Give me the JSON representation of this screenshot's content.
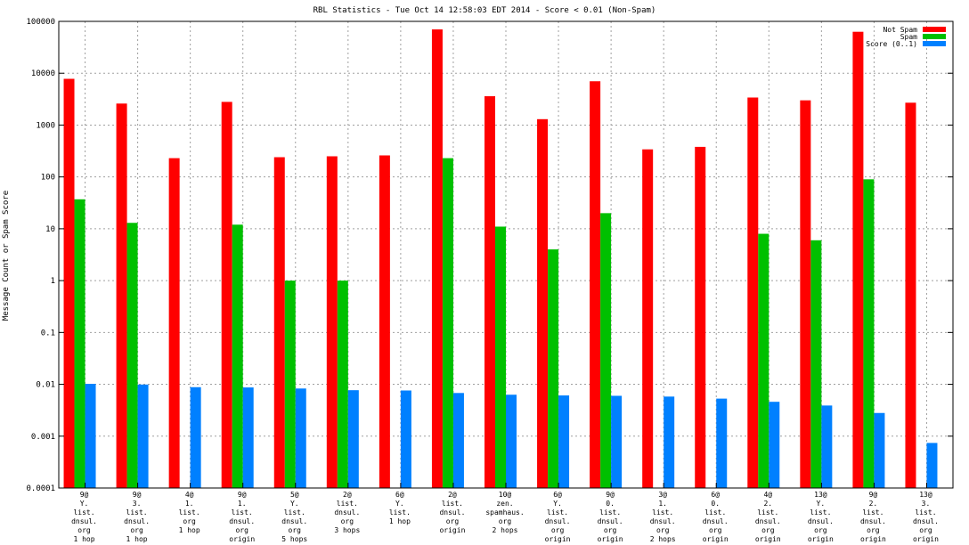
{
  "chart_data": {
    "type": "bar",
    "title": "RBL Statistics - Tue Oct 14 12:58:03 EDT 2014 - Score < 0.01 (Non-Spam)",
    "xlabel": "",
    "ylabel": "Message Count or Spam Score",
    "yscale": "log",
    "ylim": [
      0.0001,
      100000
    ],
    "yticks": [
      "0.0001",
      "0.001",
      "0.01",
      "0.1",
      "1",
      "10",
      "100",
      "1000",
      "10000",
      "100000"
    ],
    "grid": true,
    "legend_position": "top-right",
    "categories": [
      [
        "9@",
        "Y.",
        "list.",
        "dnsul.",
        "org",
        "1 hop"
      ],
      [
        "9@",
        "3.",
        "list.",
        "dnsul.",
        "org",
        "1 hop"
      ],
      [
        "4@",
        "1.",
        "list.",
        "org",
        "1 hop"
      ],
      [
        "9@",
        "1.",
        "list.",
        "dnsul.",
        "org",
        "origin"
      ],
      [
        "5@",
        "Y.",
        "list.",
        "dnsul.",
        "org",
        "5 hops"
      ],
      [
        "2@",
        "list.",
        "dnsul.",
        "org",
        "3 hops"
      ],
      [
        "6@",
        "Y.",
        "list.",
        "1 hop"
      ],
      [
        "2@",
        "list.",
        "dnsul.",
        "org",
        "origin"
      ],
      [
        "10@",
        "zen.",
        "spamhaus.",
        "org",
        "2 hops"
      ],
      [
        "6@",
        "Y.",
        "list.",
        "dnsul.",
        "org",
        "origin"
      ],
      [
        "9@",
        "0.",
        "list.",
        "dnsul.",
        "org",
        "origin"
      ],
      [
        "3@",
        "1.",
        "list.",
        "dnsul.",
        "org",
        "2 hops"
      ],
      [
        "6@",
        "0.",
        "list.",
        "dnsul.",
        "org",
        "origin"
      ],
      [
        "4@",
        "2.",
        "list.",
        "dnsul.",
        "org",
        "origin"
      ],
      [
        "13@",
        "Y.",
        "list.",
        "dnsul.",
        "org",
        "origin"
      ],
      [
        "9@",
        "2.",
        "list.",
        "dnsul.",
        "org",
        "origin"
      ],
      [
        "13@",
        "3.",
        "list.",
        "dnsul.",
        "org",
        "origin"
      ]
    ],
    "series": [
      {
        "name": "Not Spam",
        "color": "#ff0000",
        "values": [
          7800,
          2600,
          230,
          2800,
          240,
          250,
          260,
          70000,
          3600,
          1300,
          7000,
          340,
          380,
          3400,
          3000,
          63000,
          2700
        ]
      },
      {
        "name": "Spam",
        "color": "#00c000",
        "values": [
          37,
          13,
          null,
          12,
          1,
          1,
          null,
          230,
          11,
          4,
          20,
          null,
          null,
          8,
          6,
          90,
          null
        ]
      },
      {
        "name": "Score (0..1)",
        "color": "#0080ff",
        "values": [
          0.0102,
          0.0099,
          0.0088,
          0.0087,
          0.0083,
          0.0077,
          0.0076,
          0.0068,
          0.0063,
          0.0061,
          0.006,
          0.0058,
          0.0053,
          0.0046,
          0.0039,
          0.0028,
          0.00074
        ]
      }
    ]
  }
}
